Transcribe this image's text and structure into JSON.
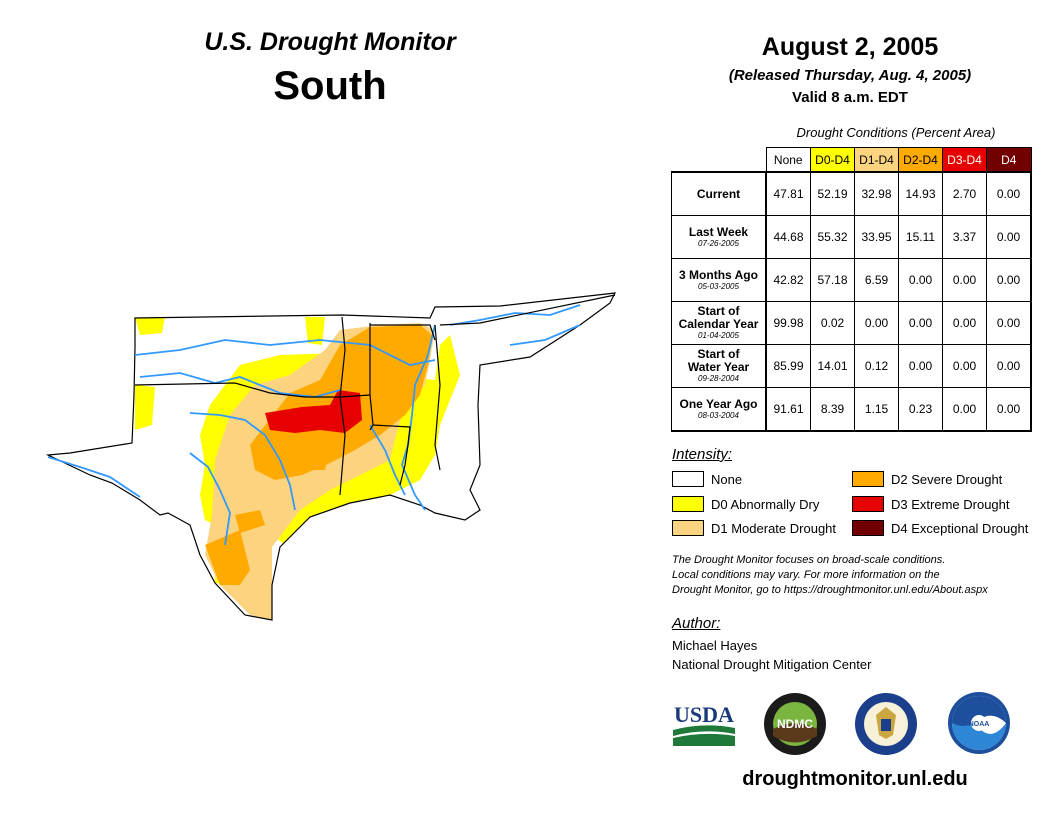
{
  "header": {
    "title": "U.S. Drought Monitor",
    "region": "South",
    "date": "August 2, 2005",
    "released": "(Released Thursday, Aug. 4, 2005)",
    "valid": "Valid 8 a.m. EDT"
  },
  "table": {
    "caption": "Drought Conditions (Percent Area)",
    "columns": [
      "None",
      "D0-D4",
      "D1-D4",
      "D2-D4",
      "D3-D4",
      "D4"
    ],
    "rows": [
      {
        "label": "Current",
        "date": "",
        "values": [
          "47.81",
          "52.19",
          "32.98",
          "14.93",
          "2.70",
          "0.00"
        ]
      },
      {
        "label": "Last Week",
        "date": "07-26-2005",
        "values": [
          "44.68",
          "55.32",
          "33.95",
          "15.11",
          "3.37",
          "0.00"
        ]
      },
      {
        "label": "3 Months Ago",
        "date": "05-03-2005",
        "values": [
          "42.82",
          "57.18",
          "6.59",
          "0.00",
          "0.00",
          "0.00"
        ]
      },
      {
        "label": "Start of Calendar Year",
        "date": "01-04-2005",
        "values": [
          "99.98",
          "0.02",
          "0.00",
          "0.00",
          "0.00",
          "0.00"
        ]
      },
      {
        "label": "Start of Water Year",
        "date": "09-28-2004",
        "values": [
          "85.99",
          "14.01",
          "0.12",
          "0.00",
          "0.00",
          "0.00"
        ]
      },
      {
        "label": "One Year Ago",
        "date": "08-03-2004",
        "values": [
          "91.61",
          "8.39",
          "1.15",
          "0.23",
          "0.00",
          "0.00"
        ]
      }
    ]
  },
  "legend": {
    "title": "Intensity:",
    "items": [
      {
        "label": "None",
        "color": "#ffffff"
      },
      {
        "label": "D0 Abnormally Dry",
        "color": "#ffff00"
      },
      {
        "label": "D1 Moderate Drought",
        "color": "#fcd37f"
      },
      {
        "label": "D2 Severe Drought",
        "color": "#ffaa00"
      },
      {
        "label": "D3 Extreme Drought",
        "color": "#e60000"
      },
      {
        "label": "D4 Exceptional Drought",
        "color": "#730000"
      }
    ]
  },
  "colors": {
    "header_d0": "#ffff00",
    "header_d1": "#fcd37f",
    "header_d2": "#ffaa00",
    "header_d3": "#e60000",
    "header_d4": "#730000",
    "river": "#3399ff"
  },
  "note": {
    "line1": "The Drought Monitor focuses on broad-scale conditions.",
    "line2": "Local conditions may vary. For more information on the",
    "line3": "Drought Monitor, go to https://droughtmonitor.unl.edu/About.aspx"
  },
  "author": {
    "heading": "Author:",
    "name": "Michael Hayes",
    "org": "National Drought Mitigation Center"
  },
  "logos": {
    "usda": "USDA",
    "ndmc": "NDMC",
    "noaa": "NOAA"
  },
  "website": "droughtmonitor.unl.edu"
}
